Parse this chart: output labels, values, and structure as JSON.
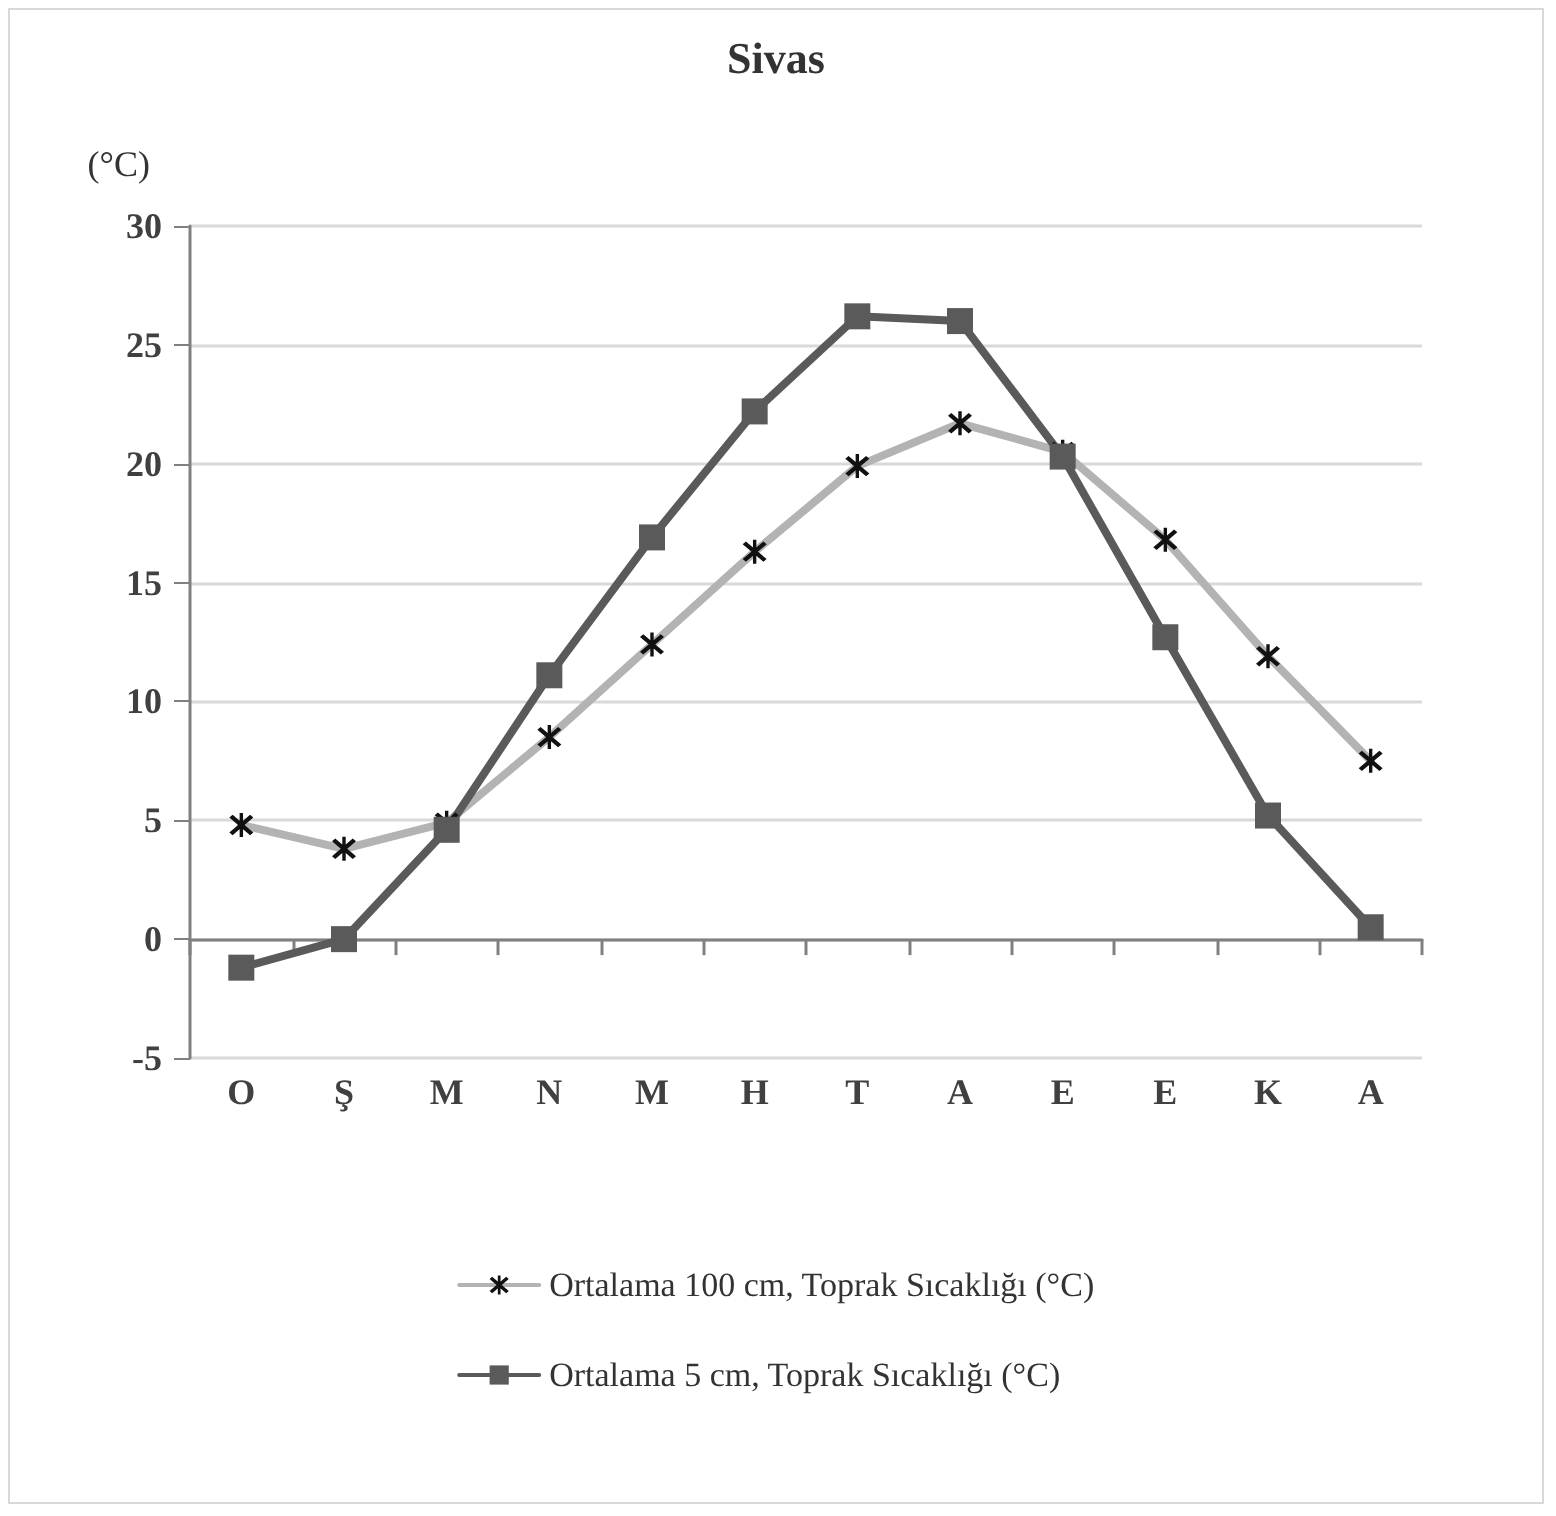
{
  "chart_data": {
    "type": "line",
    "title": "Sivas",
    "ylabel": "(°C)",
    "categories": [
      "O",
      "Ş",
      "M",
      "N",
      "M",
      "H",
      "T",
      "A",
      "E",
      "E",
      "K",
      "A"
    ],
    "series": [
      {
        "name": "Ortalama 100 cm, Toprak Sıcaklığı (°C)",
        "color": "#b3b3b3",
        "marker": "cross",
        "values": [
          4.8,
          3.8,
          4.9,
          8.5,
          12.4,
          16.3,
          19.9,
          21.7,
          20.5,
          16.8,
          11.9,
          7.5
        ]
      },
      {
        "name": "Ortalama 5 cm, Toprak Sıcaklığı (°C)",
        "color": "#5a5a5a",
        "marker": "square",
        "values": [
          -1.2,
          0.0,
          4.6,
          11.1,
          16.9,
          22.2,
          26.2,
          26.0,
          20.3,
          12.7,
          5.2,
          0.5
        ]
      }
    ],
    "ylim": [
      -5,
      30
    ],
    "yticks": [
      -5,
      0,
      5,
      10,
      15,
      20,
      25,
      30
    ],
    "grid": "y",
    "legend": "bottom",
    "line_style": "solid"
  }
}
